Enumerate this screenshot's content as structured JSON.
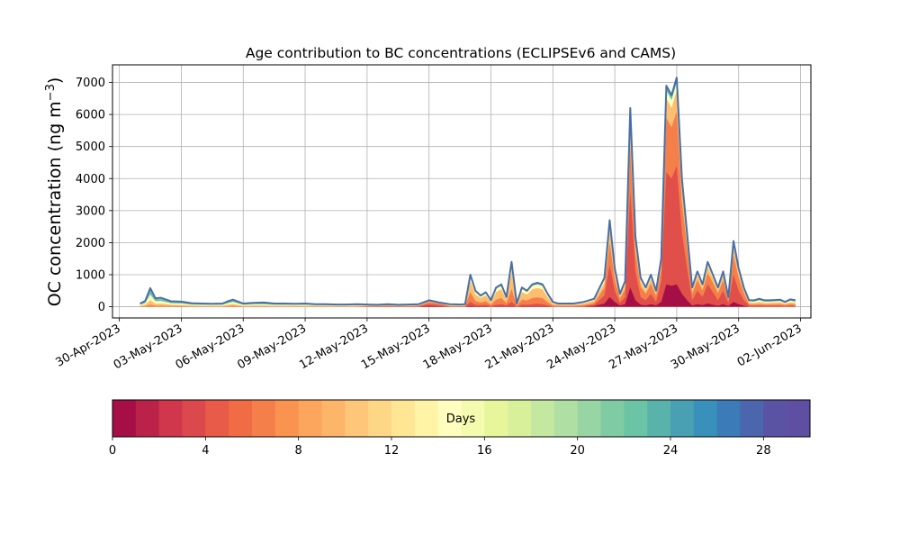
{
  "chart_data": {
    "type": "area",
    "title": "Age contribution to BC concentrations (ECLIPSEv6 and CAMS)",
    "xlabel": "",
    "ylabel": "OC concentration (ng m⁻³)",
    "ylabel_text": "OC concentration (ng m",
    "ylabel_sup": "−3",
    "ylabel_close": ")",
    "xlim": [
      "2023-04-29T16:00",
      "2023-06-02T12:00"
    ],
    "ylim": [
      -350,
      7550
    ],
    "grid": true,
    "x_ticks": [
      "2023-04-30",
      "2023-05-03",
      "2023-05-06",
      "2023-05-09",
      "2023-05-12",
      "2023-05-15",
      "2023-05-18",
      "2023-05-21",
      "2023-05-24",
      "2023-05-27",
      "2023-05-30",
      "2023-06-02"
    ],
    "x_tick_labels": [
      "30-Apr-2023",
      "03-May-2023",
      "06-May-2023",
      "09-May-2023",
      "12-May-2023",
      "15-May-2023",
      "18-May-2023",
      "21-May-2023",
      "24-May-2023",
      "27-May-2023",
      "30-May-2023",
      "02-Jun-2023"
    ],
    "y_ticks": [
      0,
      1000,
      2000,
      3000,
      4000,
      5000,
      6000,
      7000
    ],
    "y_tick_labels": [
      "0",
      "1000",
      "2000",
      "3000",
      "4000",
      "5000",
      "6000",
      "7000"
    ],
    "total": {
      "x": [
        "2023-05-01T00:00",
        "2023-05-01T06:00",
        "2023-05-01T12:00",
        "2023-05-01T18:00",
        "2023-05-02T00:00",
        "2023-05-02T12:00",
        "2023-05-03T00:00",
        "2023-05-03T12:00",
        "2023-05-04T00:00",
        "2023-05-04T12:00",
        "2023-05-05T00:00",
        "2023-05-05T06:00",
        "2023-05-05T12:00",
        "2023-05-06T00:00",
        "2023-05-06T12:00",
        "2023-05-07T00:00",
        "2023-05-07T12:00",
        "2023-05-08T00:00",
        "2023-05-08T12:00",
        "2023-05-09T00:00",
        "2023-05-09T12:00",
        "2023-05-10T00:00",
        "2023-05-10T12:00",
        "2023-05-11T00:00",
        "2023-05-11T12:00",
        "2023-05-12T00:00",
        "2023-05-12T12:00",
        "2023-05-13T00:00",
        "2023-05-13T12:00",
        "2023-05-14T00:00",
        "2023-05-14T12:00",
        "2023-05-15T00:00",
        "2023-05-15T12:00",
        "2023-05-16T00:00",
        "2023-05-16T12:00",
        "2023-05-16T18:00",
        "2023-05-17T00:00",
        "2023-05-17T06:00",
        "2023-05-17T12:00",
        "2023-05-17T18:00",
        "2023-05-18T00:00",
        "2023-05-18T06:00",
        "2023-05-18T12:00",
        "2023-05-18T18:00",
        "2023-05-19T00:00",
        "2023-05-19T06:00",
        "2023-05-19T12:00",
        "2023-05-19T18:00",
        "2023-05-20T00:00",
        "2023-05-20T06:00",
        "2023-05-20T12:00",
        "2023-05-20T18:00",
        "2023-05-21T00:00",
        "2023-05-21T06:00",
        "2023-05-21T12:00",
        "2023-05-22T00:00",
        "2023-05-22T12:00",
        "2023-05-23T00:00",
        "2023-05-23T12:00",
        "2023-05-23T18:00",
        "2023-05-24T00:00",
        "2023-05-24T06:00",
        "2023-05-24T12:00",
        "2023-05-24T18:00",
        "2023-05-25T00:00",
        "2023-05-25T06:00",
        "2023-05-25T12:00",
        "2023-05-25T18:00",
        "2023-05-26T00:00",
        "2023-05-26T06:00",
        "2023-05-26T12:00",
        "2023-05-26T18:00",
        "2023-05-27T00:00",
        "2023-05-27T06:00",
        "2023-05-27T12:00",
        "2023-05-27T18:00",
        "2023-05-28T00:00",
        "2023-05-28T06:00",
        "2023-05-28T12:00",
        "2023-05-28T18:00",
        "2023-05-29T00:00",
        "2023-05-29T06:00",
        "2023-05-29T12:00",
        "2023-05-29T18:00",
        "2023-05-30T00:00",
        "2023-05-30T06:00",
        "2023-05-30T12:00",
        "2023-05-30T18:00",
        "2023-05-31T00:00",
        "2023-05-31T06:00",
        "2023-05-31T12:00",
        "2023-05-31T18:00",
        "2023-06-01T00:00",
        "2023-06-01T06:00",
        "2023-06-01T12:00",
        "2023-06-01T18:00"
      ],
      "y": [
        100,
        180,
        580,
        260,
        280,
        170,
        160,
        110,
        100,
        90,
        100,
        170,
        220,
        100,
        120,
        130,
        100,
        100,
        90,
        100,
        80,
        80,
        70,
        70,
        80,
        70,
        60,
        80,
        60,
        70,
        80,
        200,
        130,
        80,
        70,
        80,
        1000,
        500,
        350,
        450,
        200,
        600,
        700,
        300,
        1400,
        100,
        600,
        500,
        700,
        750,
        700,
        400,
        150,
        100,
        100,
        100,
        150,
        250,
        900,
        2700,
        1200,
        400,
        800,
        6200,
        2200,
        900,
        600,
        1000,
        500,
        1500,
        6900,
        6600,
        7150,
        4000,
        2300,
        600,
        1100,
        700,
        1400,
        1000,
        600,
        1100,
        300,
        2050,
        1200,
        600,
        200,
        200,
        250,
        200,
        200,
        210,
        220,
        150,
        230,
        200
      ]
    },
    "layers": [
      {
        "days": 1,
        "color": "#a50f45",
        "values": [
          0,
          0,
          0,
          0,
          0,
          0,
          0,
          0,
          0,
          0,
          0,
          0,
          0,
          0,
          0,
          0,
          0,
          0,
          0,
          0,
          0,
          0,
          0,
          0,
          0,
          0,
          0,
          0,
          0,
          0,
          0,
          20,
          10,
          0,
          0,
          0,
          20,
          10,
          10,
          10,
          0,
          10,
          10,
          5,
          10,
          0,
          10,
          10,
          10,
          10,
          10,
          5,
          0,
          0,
          0,
          0,
          0,
          20,
          100,
          300,
          150,
          40,
          80,
          600,
          200,
          60,
          40,
          80,
          40,
          150,
          700,
          650,
          700,
          400,
          200,
          40,
          80,
          50,
          100,
          60,
          30,
          80,
          20,
          150,
          80,
          30,
          0,
          0,
          0,
          0,
          0,
          0,
          0,
          0,
          0,
          0
        ]
      },
      {
        "days": 4,
        "color": "#e04f4a",
        "values": [
          0,
          0,
          0,
          0,
          0,
          0,
          0,
          0,
          0,
          0,
          0,
          0,
          0,
          0,
          0,
          0,
          0,
          0,
          0,
          0,
          0,
          0,
          0,
          0,
          0,
          10,
          10,
          20,
          10,
          10,
          20,
          80,
          50,
          10,
          10,
          10,
          150,
          60,
          50,
          60,
          20,
          60,
          80,
          40,
          150,
          10,
          70,
          60,
          80,
          90,
          80,
          40,
          10,
          10,
          10,
          10,
          20,
          60,
          350,
          1300,
          500,
          120,
          300,
          3600,
          1100,
          300,
          200,
          400,
          150,
          800,
          4200,
          4000,
          4400,
          2300,
          1200,
          200,
          500,
          300,
          700,
          450,
          200,
          500,
          100,
          1000,
          500,
          200,
          40,
          30,
          40,
          30,
          30,
          30,
          30,
          20,
          30,
          30
        ]
      },
      {
        "days": 8,
        "color": "#f57f4a",
        "values": [
          10,
          20,
          60,
          30,
          30,
          20,
          20,
          10,
          10,
          10,
          10,
          20,
          30,
          10,
          10,
          10,
          10,
          10,
          10,
          10,
          10,
          10,
          10,
          10,
          10,
          20,
          20,
          30,
          20,
          20,
          30,
          150,
          90,
          20,
          20,
          20,
          450,
          180,
          130,
          170,
          60,
          220,
          270,
          110,
          550,
          30,
          220,
          190,
          270,
          290,
          270,
          140,
          40,
          30,
          30,
          30,
          50,
          120,
          600,
          2000,
          850,
          250,
          550,
          5000,
          1700,
          630,
          400,
          720,
          330,
          1150,
          5900,
          5600,
          6100,
          3300,
          1850,
          400,
          830,
          500,
          1050,
          750,
          420,
          830,
          200,
          1600,
          900,
          420,
          80,
          70,
          80,
          70,
          70,
          70,
          80,
          50,
          80,
          70
        ]
      },
      {
        "days": 12,
        "color": "#fdbe6f",
        "values": [
          30,
          60,
          200,
          90,
          100,
          60,
          50,
          40,
          30,
          30,
          30,
          60,
          80,
          30,
          40,
          40,
          30,
          30,
          30,
          30,
          30,
          30,
          20,
          20,
          30,
          30,
          30,
          40,
          30,
          30,
          40,
          180,
          110,
          40,
          30,
          40,
          800,
          380,
          270,
          350,
          140,
          460,
          540,
          230,
          1100,
          70,
          460,
          380,
          540,
          580,
          540,
          300,
          100,
          70,
          70,
          70,
          100,
          200,
          750,
          2400,
          1050,
          330,
          690,
          5800,
          2000,
          780,
          510,
          880,
          420,
          1350,
          6500,
          6200,
          6750,
          3750,
          2120,
          520,
          980,
          620,
          1250,
          900,
          520,
          980,
          260,
          1880,
          1080,
          530,
          130,
          120,
          150,
          120,
          120,
          130,
          140,
          90,
          140,
          120
        ]
      },
      {
        "days": 16,
        "color": "#fffebe",
        "values": [
          60,
          110,
          380,
          170,
          180,
          110,
          100,
          70,
          60,
          60,
          60,
          110,
          150,
          60,
          80,
          80,
          60,
          60,
          60,
          60,
          50,
          50,
          40,
          40,
          50,
          40,
          40,
          50,
          40,
          40,
          50,
          190,
          120,
          60,
          50,
          60,
          950,
          460,
          320,
          420,
          180,
          560,
          650,
          280,
          1320,
          90,
          560,
          460,
          650,
          700,
          650,
          370,
          130,
          90,
          90,
          90,
          130,
          230,
          850,
          2600,
          1150,
          370,
          760,
          6050,
          2120,
          850,
          560,
          950,
          460,
          1440,
          6750,
          6450,
          7000,
          3900,
          2220,
          570,
          1050,
          660,
          1340,
          950,
          560,
          1050,
          280,
          1980,
          1150,
          570,
          170,
          160,
          200,
          160,
          160,
          170,
          180,
          120,
          190,
          160
        ]
      },
      {
        "days": 24,
        "color": "#66c2a5",
        "values": [
          90,
          160,
          530,
          240,
          250,
          150,
          140,
          100,
          90,
          80,
          90,
          150,
          200,
          90,
          110,
          120,
          90,
          90,
          80,
          90,
          70,
          70,
          60,
          60,
          70,
          60,
          50,
          70,
          50,
          60,
          70,
          198,
          128,
          75,
          65,
          75,
          990,
          490,
          345,
          445,
          195,
          590,
          690,
          295,
          1385,
          97,
          592,
          492,
          690,
          740,
          690,
          395,
          145,
          97,
          97,
          97,
          145,
          245,
          890,
          2680,
          1190,
          395,
          790,
          6170,
          2180,
          890,
          590,
          990,
          490,
          1490,
          6870,
          6570,
          7120,
          3980,
          2280,
          590,
          1090,
          690,
          1390,
          990,
          590,
          1090,
          295,
          2040,
          1190,
          595,
          190,
          190,
          240,
          190,
          190,
          200,
          210,
          140,
          220,
          190
        ]
      }
    ],
    "series_line_color": "#4a6fa5",
    "colorbar": {
      "label": "Days",
      "range": [
        0,
        30
      ],
      "ticks": [
        0,
        4,
        8,
        12,
        16,
        20,
        24,
        28
      ],
      "tick_labels": [
        "0",
        "4",
        "8",
        "12",
        "16",
        "20",
        "24",
        "28"
      ],
      "colors": [
        "#a50f45",
        "#bb2249",
        "#d0364c",
        "#dc494c",
        "#e85b49",
        "#f16c45",
        "#f57f4a",
        "#f9934f",
        "#fca55d",
        "#fdb56a",
        "#fdc678",
        "#fed786",
        "#fee694",
        "#fff3a6",
        "#fffebe",
        "#f4fbae",
        "#e8f69b",
        "#d9f09b",
        "#c5e8a0",
        "#b0dfa3",
        "#98d5a4",
        "#7fcba4",
        "#6bc4a5",
        "#59b3aa",
        "#48a0b2",
        "#3890bb",
        "#3b7cb8",
        "#4b66ad",
        "#5a53a4",
        "#5e4fa2"
      ]
    }
  }
}
